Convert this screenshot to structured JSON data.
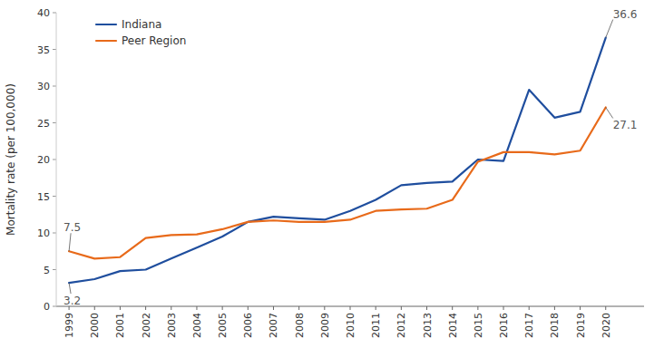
{
  "chart_data": {
    "type": "line",
    "y_label": "Mortality rate (per 100,000)",
    "x": [
      1999,
      2000,
      2001,
      2002,
      2003,
      2004,
      2005,
      2006,
      2007,
      2008,
      2009,
      2010,
      2011,
      2012,
      2013,
      2014,
      2015,
      2016,
      2017,
      2018,
      2019,
      2020
    ],
    "series": [
      {
        "name": "Indiana",
        "color": "#1f4e9e",
        "values": [
          3.2,
          3.7,
          4.8,
          5.0,
          6.5,
          8.0,
          9.5,
          11.5,
          12.2,
          12.0,
          11.8,
          13.0,
          14.5,
          16.5,
          16.8,
          17.0,
          20.0,
          19.8,
          29.5,
          25.7,
          26.5,
          36.6
        ]
      },
      {
        "name": "Peer Region",
        "color": "#e86a1a",
        "values": [
          7.5,
          6.5,
          6.7,
          9.3,
          9.7,
          9.8,
          10.5,
          11.5,
          11.7,
          11.5,
          11.5,
          11.8,
          13.0,
          13.2,
          13.3,
          14.5,
          19.7,
          21.0,
          21.0,
          20.7,
          21.2,
          27.1
        ]
      }
    ],
    "xlim": [
      1998.5,
      2021.5
    ],
    "xticks": [
      1999,
      2000,
      2001,
      2002,
      2003,
      2004,
      2005,
      2006,
      2007,
      2008,
      2009,
      2010,
      2011,
      2012,
      2013,
      2014,
      2015,
      2016,
      2017,
      2018,
      2019,
      2020
    ],
    "ylim": [
      0,
      40
    ],
    "yticks": [
      0,
      5,
      10,
      15,
      20,
      25,
      30,
      35,
      40
    ],
    "annotations": [
      {
        "text": "7.5",
        "x": 1999,
        "y": 7.5
      },
      {
        "text": "3.2",
        "x": 1999,
        "y": 3.2
      },
      {
        "text": "36.6",
        "x": 2020,
        "y": 36.6
      },
      {
        "text": "27.1",
        "x": 2020,
        "y": 27.1
      }
    ],
    "annotation_color": "#555555",
    "legend": "upper left",
    "grid": false
  }
}
